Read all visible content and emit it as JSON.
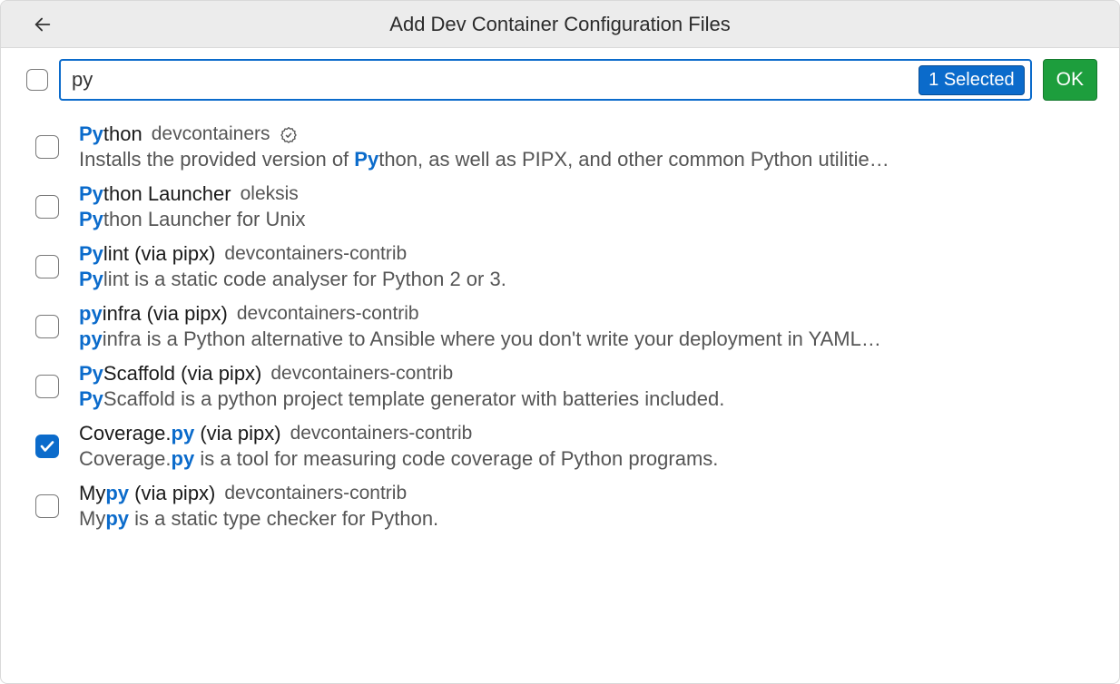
{
  "header": {
    "title": "Add Dev Container Configuration Files"
  },
  "search": {
    "value": "py",
    "selected_label": "1 Selected",
    "ok_label": "OK"
  },
  "colors": {
    "accent": "#0b6bcb",
    "ok_bg": "#1d9e3d",
    "header_bg": "#ececec",
    "text": "#1a1a1a",
    "muted": "#555555",
    "border": "#d9d9d9"
  },
  "items": [
    {
      "checked": false,
      "verified": true,
      "name_pre": "",
      "name_hl": "Py",
      "name_post": "thon",
      "publisher": "devcontainers",
      "desc_pre": "Installs the provided version of ",
      "desc_hl": "Py",
      "desc_post": "thon, as well as PIPX, and other common Python utilitie…"
    },
    {
      "checked": false,
      "verified": false,
      "name_pre": "",
      "name_hl": "Py",
      "name_post": "thon Launcher",
      "publisher": "oleksis",
      "desc_pre": "",
      "desc_hl": "Py",
      "desc_post": "thon Launcher for Unix"
    },
    {
      "checked": false,
      "verified": false,
      "name_pre": "",
      "name_hl": "Py",
      "name_post": "lint (via pipx)",
      "publisher": "devcontainers-contrib",
      "desc_pre": "",
      "desc_hl": "Py",
      "desc_post": "lint is a static code analyser for Python 2 or 3."
    },
    {
      "checked": false,
      "verified": false,
      "name_pre": "",
      "name_hl": "py",
      "name_post": "infra (via pipx)",
      "publisher": "devcontainers-contrib",
      "desc_pre": "",
      "desc_hl": "py",
      "desc_post": "infra is a Python alternative to Ansible where you don't write your deployment in YAML…"
    },
    {
      "checked": false,
      "verified": false,
      "name_pre": "",
      "name_hl": "Py",
      "name_post": "Scaffold (via pipx)",
      "publisher": "devcontainers-contrib",
      "desc_pre": "",
      "desc_hl": "Py",
      "desc_post": "Scaffold is a python project template generator with batteries included."
    },
    {
      "checked": true,
      "verified": false,
      "name_pre": "Coverage.",
      "name_hl": "py",
      "name_post": " (via pipx)",
      "publisher": "devcontainers-contrib",
      "desc_pre": "Coverage.",
      "desc_hl": "py",
      "desc_post": " is a tool for measuring code coverage of Python programs."
    },
    {
      "checked": false,
      "verified": false,
      "name_pre": "My",
      "name_hl": "py",
      "name_post": " (via pipx)",
      "publisher": "devcontainers-contrib",
      "desc_pre": "My",
      "desc_hl": "py",
      "desc_post": " is a static type checker for Python."
    }
  ]
}
